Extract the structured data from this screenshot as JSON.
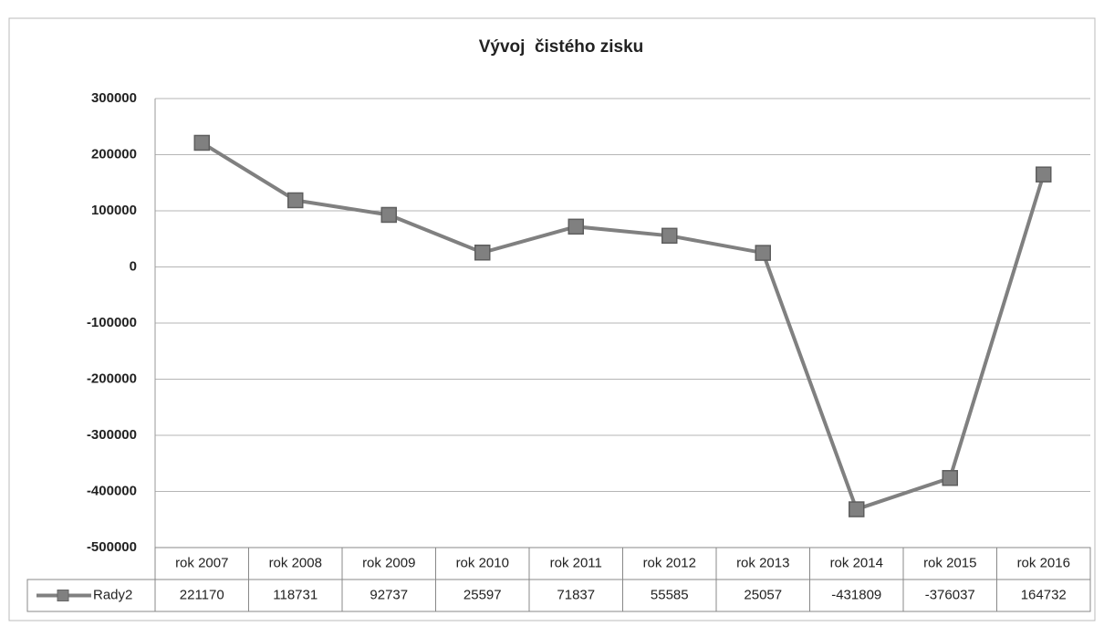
{
  "chart_data": {
    "type": "line",
    "title": "Vývoj  čistého zisku",
    "categories": [
      "rok 2007",
      "rok 2008",
      "rok 2009",
      "rok 2010",
      "rok 2011",
      "rok 2012",
      "rok 2013",
      "rok 2014",
      "rok 2015",
      "rok 2016"
    ],
    "series": [
      {
        "name": "Rady2",
        "color": "#808080",
        "values": [
          221170,
          118731,
          92737,
          25597,
          71837,
          55585,
          25057,
          -431809,
          -376037,
          164732
        ]
      }
    ],
    "ylim": [
      -500000,
      300000
    ],
    "yticks": [
      -500000,
      -400000,
      -300000,
      -200000,
      -100000,
      0,
      100000,
      200000,
      300000
    ],
    "grid": true
  }
}
